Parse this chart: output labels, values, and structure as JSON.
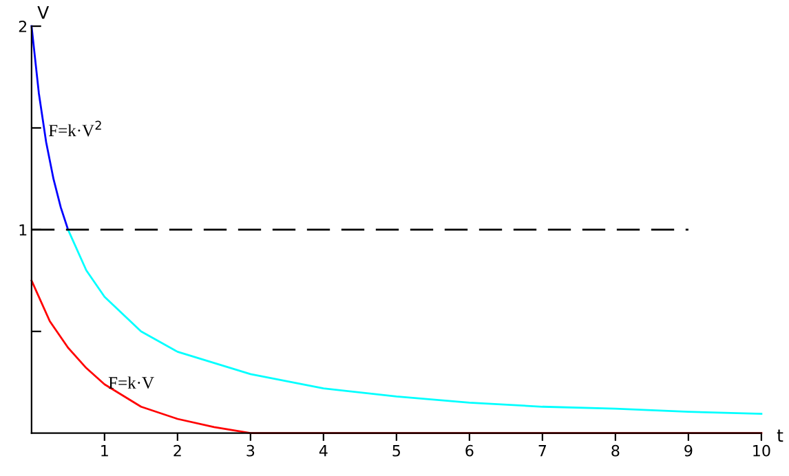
{
  "chart_data": {
    "type": "line",
    "xlabel": "t",
    "ylabel": "V",
    "xlim": [
      0,
      10
    ],
    "ylim": [
      0,
      2
    ],
    "xticks": [
      1,
      2,
      3,
      4,
      5,
      6,
      7,
      8,
      9,
      10
    ],
    "yticks": [
      {
        "value": 0.5,
        "label": null
      },
      1,
      {
        "value": 1.5,
        "label": null
      },
      2
    ],
    "series": [
      {
        "color": "#0000ff",
        "x": [
          0,
          0.1,
          0.2,
          0.3,
          0.4,
          0.5
        ],
        "values": [
          2,
          1.67,
          1.43,
          1.25,
          1.11,
          1.0
        ]
      },
      {
        "color": "#00ffff",
        "x": [
          0.5,
          0.75,
          1,
          1.5,
          2,
          3,
          4,
          5,
          6,
          7,
          8,
          9,
          10
        ],
        "values": [
          1.0,
          0.8,
          0.67,
          0.5,
          0.4,
          0.29,
          0.22,
          0.18,
          0.15,
          0.13,
          0.12,
          0.105,
          0.095
        ]
      },
      {
        "color": "#ff0000",
        "x": [
          0,
          0.25,
          0.5,
          0.75,
          1,
          1.5,
          2,
          2.5,
          3,
          10
        ],
        "values": [
          0.75,
          0.55,
          0.42,
          0.32,
          0.24,
          0.13,
          0.07,
          0.03,
          0.0,
          0.0
        ]
      },
      {
        "color": "#000000",
        "line_style": "dashed",
        "x": [
          0,
          9
        ],
        "values": [
          1,
          1
        ]
      }
    ],
    "annotations": [
      {
        "text": "F=k·V$^{2}$",
        "x": 0.23,
        "y": 1.48
      },
      {
        "text": "F=k·V",
        "x": 1.05,
        "y": 0.24
      }
    ]
  }
}
